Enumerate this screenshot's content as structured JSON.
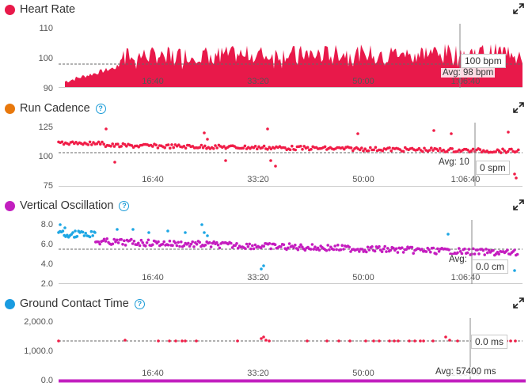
{
  "colors": {
    "heart_rate": "#e8194a",
    "run_cadence": "#e8780c",
    "vertical_oscillation": "#c21fbf",
    "ground_contact_time": "#199be0",
    "cadence_points": "#f01d47",
    "vo_low_points": "#c41cbf",
    "vo_high_points": "#1ea7e4",
    "gct_points": "#f01d47",
    "gct_line": "#c21fbf",
    "help_icon": "#1a9bd7"
  },
  "x_axis_ticks": [
    "16:40",
    "33:20",
    "50:00",
    "1:06:40"
  ],
  "panels": {
    "heart_rate": {
      "title": "Heart Rate",
      "y_ticks": [
        "110",
        "100",
        "90"
      ],
      "cursor_value": "100 bpm",
      "avg_label": "Avg: 98 bpm"
    },
    "run_cadence": {
      "title": "Run Cadence",
      "y_ticks": [
        "125",
        "100",
        "75"
      ],
      "cursor_value": "0 spm",
      "avg_label": "Avg: 10"
    },
    "vertical_oscillation": {
      "title": "Vertical Oscillation",
      "y_ticks": [
        "8.0",
        "6.0",
        "4.0",
        "2.0"
      ],
      "cursor_value": "0.0 cm",
      "avg_label": "Avg:"
    },
    "ground_contact_time": {
      "title": "Ground Contact Time",
      "y_ticks": [
        "2,000.0",
        "1,000.0",
        "0.0"
      ],
      "cursor_value": "0.0 ms",
      "avg_label": "Avg: 57400 ms"
    }
  }
}
